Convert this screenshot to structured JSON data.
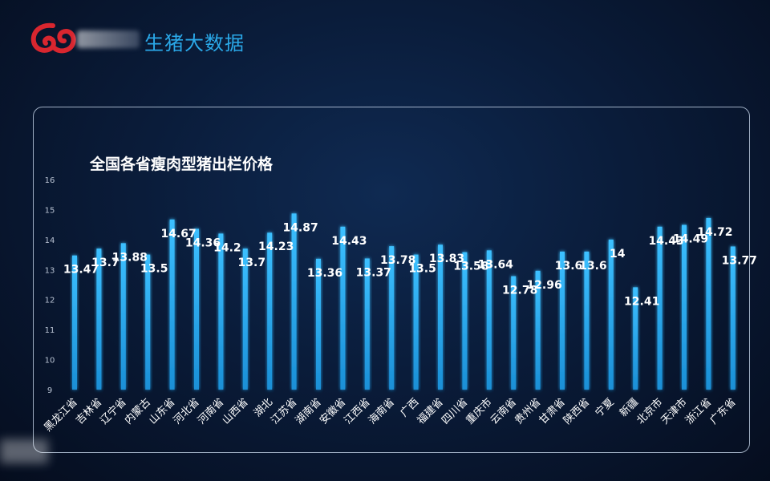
{
  "header": {
    "title": "生猪大数据",
    "logo": "red-swirl-logo-icon",
    "accent_color": "#2aa8e8"
  },
  "chart_data": {
    "type": "bar",
    "title": "全国各省瘦肉型猪出栏价格",
    "xlabel": "",
    "ylabel": "",
    "ylim": [
      9,
      16
    ],
    "yticks": [
      9,
      10,
      11,
      12,
      13,
      14,
      15,
      16
    ],
    "grid": false,
    "bar_color": "#29aef0",
    "categories": [
      "黑龙江省",
      "吉林省",
      "辽宁省",
      "内蒙古",
      "山东省",
      "河北省",
      "河南省",
      "山西省",
      "湖北",
      "江苏省",
      "湖南省",
      "安徽省",
      "江西省",
      "海南省",
      "广西",
      "福建省",
      "四川省",
      "重庆市",
      "云南省",
      "贵州省",
      "甘肃省",
      "陕西省",
      "宁夏",
      "新疆",
      "北京市",
      "天津市",
      "浙江省",
      "广东省"
    ],
    "values": [
      13.47,
      13.7,
      13.88,
      13.5,
      14.67,
      14.36,
      14.2,
      13.7,
      14.23,
      14.87,
      13.36,
      14.43,
      13.37,
      13.78,
      13.5,
      13.83,
      13.58,
      13.64,
      12.78,
      12.96,
      13.6,
      13.6,
      14,
      12.41,
      14.43,
      14.49,
      14.72,
      13.77
    ]
  }
}
